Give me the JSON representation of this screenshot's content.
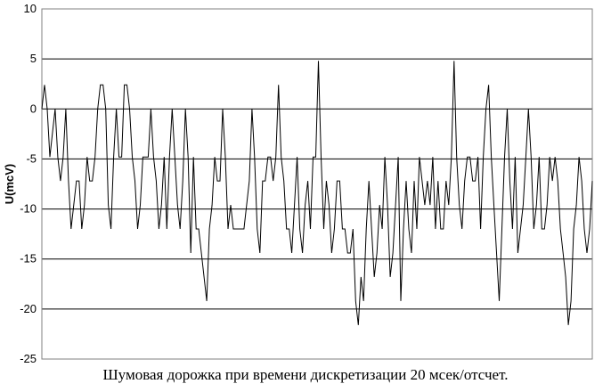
{
  "chart_data": {
    "type": "line",
    "title": "",
    "xlabel": "",
    "ylabel": "U(mcV)",
    "ylim": [
      -25,
      10
    ],
    "yticks": [
      10,
      5,
      0,
      -5,
      -10,
      -15,
      -20,
      -25
    ],
    "grid": "horizontal",
    "legend": "none",
    "line_color": "#000000",
    "series": [
      {
        "values": [
          0,
          2.4,
          0,
          -4.8,
          -2.4,
          0,
          -4.8,
          -7.2,
          -4.8,
          0,
          -7.2,
          -12,
          -9.6,
          -7.2,
          -7.2,
          -12,
          -9.6,
          -4.8,
          -7.2,
          -7.2,
          -4.8,
          0,
          2.4,
          2.4,
          0,
          -9.6,
          -12,
          -4.8,
          0,
          -4.8,
          -4.8,
          2.4,
          2.4,
          0,
          -4.8,
          -7.2,
          -12,
          -9.6,
          -4.8,
          -4.8,
          -4.8,
          0,
          -4.8,
          -7.2,
          -12,
          -9.6,
          -4.8,
          -12,
          -4.8,
          0,
          -4.8,
          -9.6,
          -12,
          -7.2,
          0,
          -4.8,
          -14.4,
          -4.8,
          -12,
          -12,
          -14.4,
          -16.8,
          -19.2,
          -12,
          -9.6,
          -4.8,
          -7.2,
          -7.2,
          0,
          -4.8,
          -12,
          -9.6,
          -12,
          -12,
          -12,
          -12,
          -12,
          -9.6,
          -7.2,
          0,
          -4.8,
          -12,
          -14.4,
          -7.2,
          -7.2,
          -4.8,
          -4.8,
          -7.2,
          -4.8,
          2.4,
          -4.8,
          -7.2,
          -12,
          -12,
          -14.4,
          -9.6,
          -4.8,
          -12,
          -14.4,
          -9.6,
          -7.2,
          -12,
          -4.8,
          -4.8,
          4.8,
          -4.8,
          -12,
          -7.2,
          -9.6,
          -14.4,
          -12,
          -7.2,
          -7.2,
          -12,
          -12,
          -14.4,
          -14.4,
          -12,
          -19.2,
          -21.6,
          -16.8,
          -19.2,
          -12,
          -7.2,
          -12,
          -16.8,
          -14.4,
          -9.6,
          -12,
          -4.8,
          -9.6,
          -16.8,
          -14.4,
          -9.6,
          -4.8,
          -19.2,
          -12,
          -7.2,
          -12,
          -14.4,
          -7.2,
          -12,
          -4.8,
          -7.2,
          -9.6,
          -7.2,
          -9.6,
          -4.8,
          -12,
          -7.2,
          -12,
          -12,
          -7.2,
          -9.6,
          -4.8,
          4.8,
          -4.8,
          -9.6,
          -12,
          -7.2,
          -4.8,
          -4.8,
          -7.2,
          -7.2,
          -4.8,
          -12,
          -4.8,
          0,
          2.4,
          -4.8,
          -9.6,
          -14.4,
          -19.2,
          -12,
          -4.8,
          0,
          -7.2,
          -12,
          -4.8,
          -14.4,
          -12,
          -9.6,
          -4.8,
          0,
          -4.8,
          -12,
          -9.6,
          -4.8,
          -12,
          -12,
          -9.6,
          -4.8,
          -7.2,
          -4.8,
          -7.2,
          -12,
          -14.4,
          -16.8,
          -21.6,
          -19.2,
          -12,
          -9.6,
          -4.8,
          -7.2,
          -12,
          -14.4,
          -12,
          -7.2
        ]
      }
    ]
  },
  "caption": "Шумовая дорожка при времени дискретизации 20 мсек/отсчет."
}
